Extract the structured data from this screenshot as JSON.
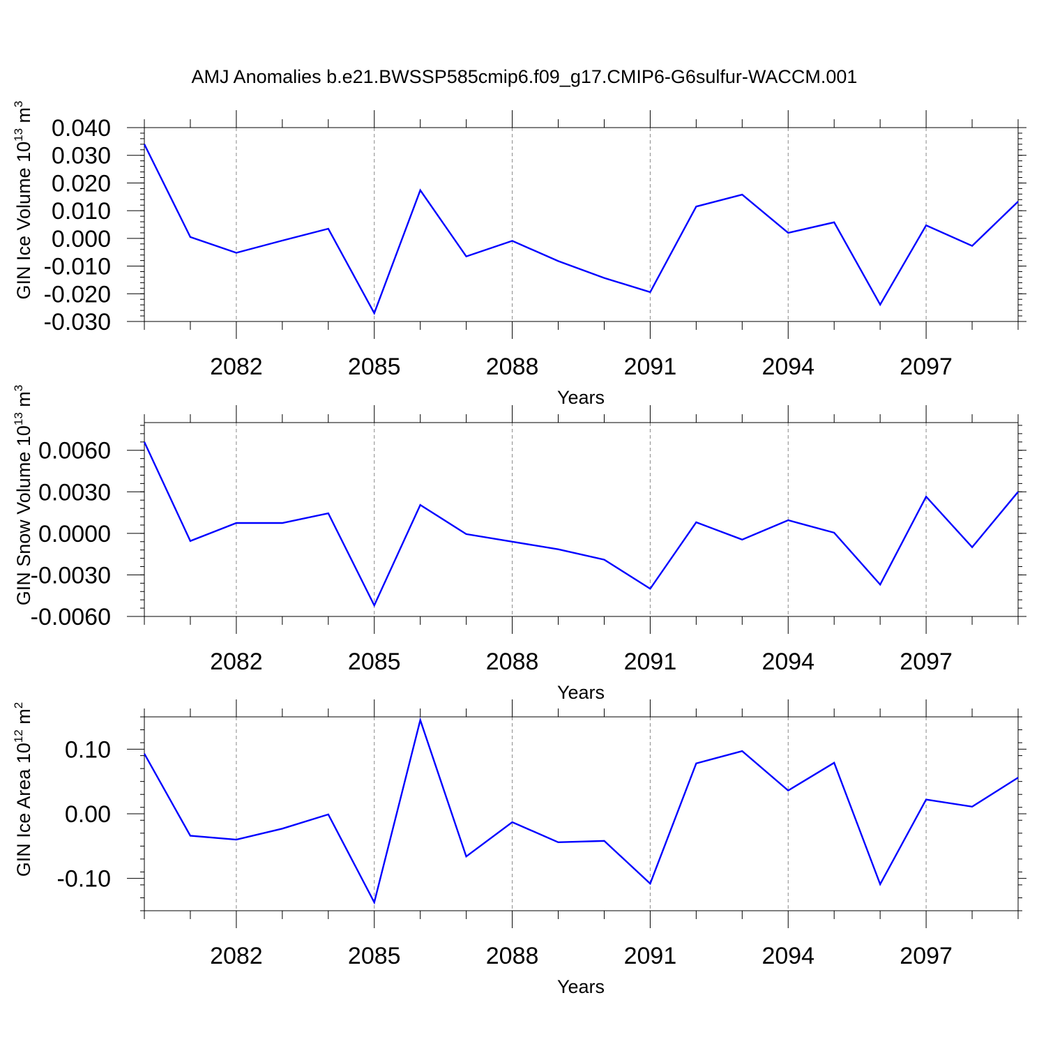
{
  "title": "AMJ Anomalies b.e21.BWSSP585cmip6.f09_g17.CMIP6-G6sulfur-WACCM.001",
  "line_color": "#0000ff",
  "grid_color": "#888888",
  "chart_data": [
    {
      "type": "line",
      "title": "AMJ Anomalies b.e21.BWSSP585cmip6.f09_g17.CMIP6-G6sulfur-WACCM.001",
      "xlabel": "Years",
      "ylabel": {
        "text": "GIN Ice Volume 10",
        "exp": "13",
        "unit": "m",
        "unit_exp": "3"
      },
      "x": [
        2080,
        2081,
        2082,
        2083,
        2084,
        2085,
        2086,
        2087,
        2088,
        2089,
        2090,
        2091,
        2092,
        2093,
        2094,
        2095,
        2096,
        2097,
        2098,
        2099
      ],
      "series": [
        {
          "values": [
            0.034,
            0.0005,
            -0.0052,
            -0.0008,
            0.0035,
            -0.027,
            0.0174,
            -0.0065,
            -0.0009,
            -0.0082,
            -0.0143,
            -0.0194,
            0.0115,
            0.0158,
            0.002,
            0.0058,
            -0.0239,
            0.0047,
            -0.0027,
            0.0133
          ]
        }
      ],
      "xlim": [
        2080,
        2099
      ],
      "ylim": [
        -0.03,
        0.04
      ],
      "xticks": [
        2082,
        2085,
        2088,
        2091,
        2094,
        2097
      ],
      "xtick_labels": [
        "2082",
        "2085",
        "2088",
        "2091",
        "2094",
        "2097"
      ],
      "yticks": [
        -0.03,
        -0.02,
        -0.01,
        0.0,
        0.01,
        0.02,
        0.03,
        0.04
      ],
      "ytick_labels": [
        "-0.030",
        "-0.020",
        "-0.010",
        "0.000",
        "0.010",
        "0.020",
        "0.030",
        "0.040"
      ],
      "grid": "vertical dashed at labeled x ticks"
    },
    {
      "type": "line",
      "xlabel": "Years",
      "ylabel": {
        "text": "GIN Snow Volume 10",
        "exp": "13",
        "unit": "m",
        "unit_exp": "3"
      },
      "x": [
        2080,
        2081,
        2082,
        2083,
        2084,
        2085,
        2086,
        2087,
        2088,
        2089,
        2090,
        2091,
        2092,
        2093,
        2094,
        2095,
        2096,
        2097,
        2098,
        2099
      ],
      "series": [
        {
          "values": [
            0.0066,
            -0.00055,
            0.00075,
            0.00075,
            0.00145,
            -0.0052,
            0.00205,
            -5e-05,
            -0.0006,
            -0.00115,
            -0.0019,
            -0.004,
            0.0008,
            -0.00045,
            0.00095,
            5e-05,
            -0.0037,
            0.00265,
            -0.001,
            0.003
          ]
        }
      ],
      "xlim": [
        2080,
        2099
      ],
      "ylim": [
        -0.006,
        0.008
      ],
      "xticks": [
        2082,
        2085,
        2088,
        2091,
        2094,
        2097
      ],
      "xtick_labels": [
        "2082",
        "2085",
        "2088",
        "2091",
        "2094",
        "2097"
      ],
      "yticks": [
        -0.006,
        -0.003,
        0.0,
        0.003,
        0.006
      ],
      "ytick_labels": [
        "-0.0060",
        "-0.0030",
        "0.0000",
        "0.0030",
        "0.0060"
      ],
      "grid": "vertical dashed at labeled x ticks"
    },
    {
      "type": "line",
      "xlabel": "Years",
      "ylabel": {
        "text": "GIN Ice Area 10",
        "exp": "12",
        "unit": "m",
        "unit_exp": "2"
      },
      "x": [
        2080,
        2081,
        2082,
        2083,
        2084,
        2085,
        2086,
        2087,
        2088,
        2089,
        2090,
        2091,
        2092,
        2093,
        2094,
        2095,
        2096,
        2097,
        2098,
        2099
      ],
      "series": [
        {
          "values": [
            0.093,
            -0.034,
            -0.04,
            -0.023,
            -0.001,
            -0.137,
            0.145,
            -0.066,
            -0.013,
            -0.044,
            -0.042,
            -0.108,
            0.078,
            0.097,
            0.036,
            0.079,
            -0.109,
            0.022,
            0.011,
            0.056
          ]
        }
      ],
      "xlim": [
        2080,
        2099
      ],
      "ylim": [
        -0.15,
        0.15
      ],
      "xticks": [
        2082,
        2085,
        2088,
        2091,
        2094,
        2097
      ],
      "xtick_labels": [
        "2082",
        "2085",
        "2088",
        "2091",
        "2094",
        "2097"
      ],
      "yticks": [
        -0.1,
        0.0,
        0.1
      ],
      "ytick_labels": [
        "-0.10",
        "0.00",
        "0.10"
      ],
      "grid": "vertical dashed at labeled x ticks"
    }
  ]
}
